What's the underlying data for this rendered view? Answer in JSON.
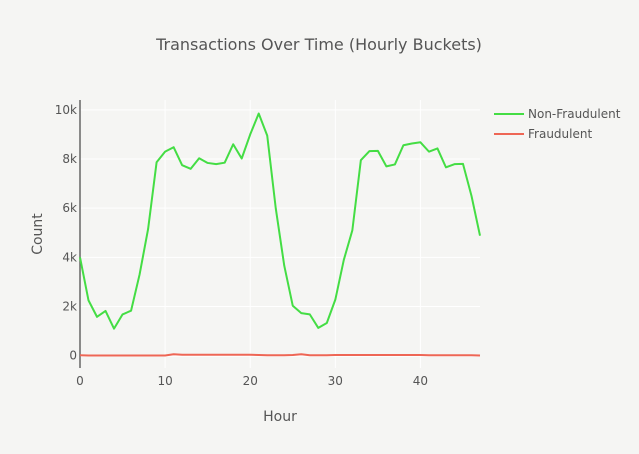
{
  "chart_data": {
    "type": "line",
    "title": "Transactions Over Time (Hourly Buckets)",
    "xlabel": "Hour",
    "ylabel": "Count",
    "xlim": [
      0,
      47
    ],
    "ylim": [
      -500,
      10400
    ],
    "x_ticks": [
      0,
      10,
      20,
      30,
      40
    ],
    "x_tick_labels": [
      "0",
      "10",
      "20",
      "30",
      "40"
    ],
    "y_ticks": [
      0,
      2000,
      4000,
      6000,
      8000,
      10000
    ],
    "y_tick_labels": [
      "0",
      "2k",
      "4k",
      "6k",
      "8k",
      "10k"
    ],
    "grid": true,
    "legend_position": "top-right",
    "x": [
      0,
      1,
      2,
      3,
      4,
      5,
      6,
      7,
      8,
      9,
      10,
      11,
      12,
      13,
      14,
      15,
      16,
      17,
      18,
      19,
      20,
      21,
      22,
      23,
      24,
      25,
      26,
      27,
      28,
      29,
      30,
      31,
      32,
      33,
      34,
      35,
      36,
      37,
      38,
      39,
      40,
      41,
      42,
      43,
      44,
      45,
      46,
      47
    ],
    "series": [
      {
        "name": "Non-Fraudulent",
        "color": "#44dd44",
        "values": [
          4000,
          2250,
          1580,
          1820,
          1100,
          1680,
          1830,
          3300,
          5150,
          7870,
          8300,
          8480,
          7750,
          7600,
          8030,
          7840,
          7790,
          7850,
          8600,
          8020,
          9000,
          9850,
          8950,
          6000,
          3660,
          2030,
          1730,
          1680,
          1130,
          1330,
          2280,
          3900,
          5100,
          7950,
          8320,
          8330,
          7700,
          7780,
          8560,
          8630,
          8680,
          8300,
          8430,
          7660,
          7790,
          7800,
          6500,
          4880
        ]
      },
      {
        "name": "Fraudulent",
        "color": "#ee6655",
        "values": [
          20,
          10,
          10,
          10,
          10,
          10,
          10,
          10,
          10,
          10,
          10,
          60,
          40,
          40,
          40,
          40,
          40,
          40,
          40,
          40,
          40,
          30,
          20,
          20,
          20,
          30,
          60,
          20,
          20,
          20,
          30,
          30,
          30,
          30,
          30,
          30,
          30,
          30,
          30,
          30,
          30,
          20,
          20,
          20,
          20,
          20,
          20,
          10
        ]
      }
    ]
  }
}
